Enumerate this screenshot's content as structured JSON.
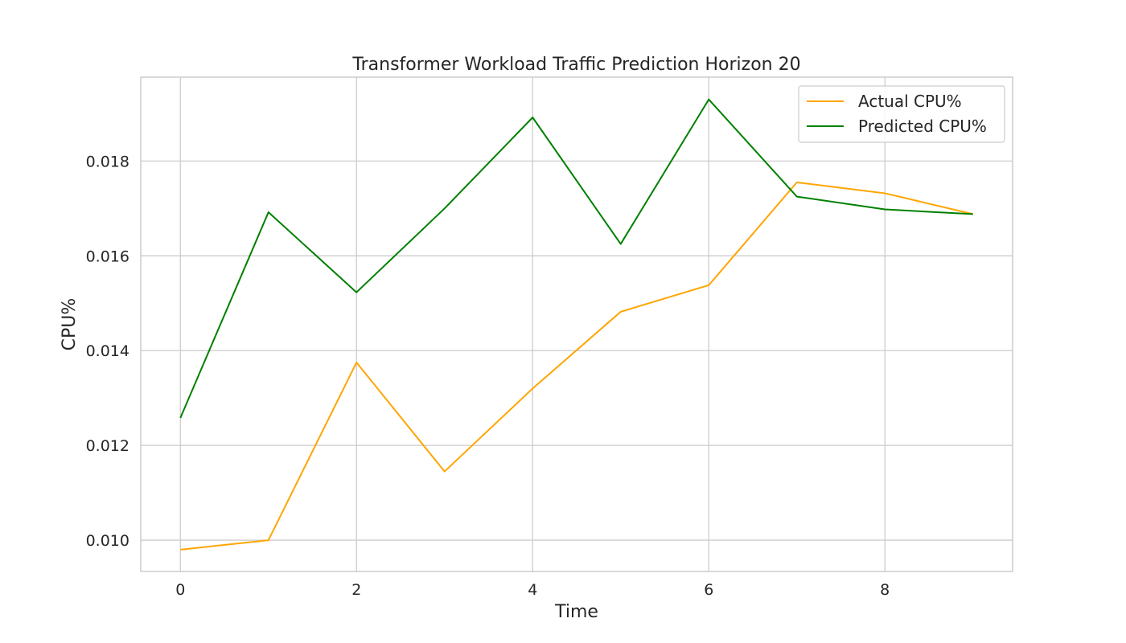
{
  "chart_data": {
    "type": "line",
    "title": "Transformer Workload Traffic Prediction Horizon 20",
    "xlabel": "Time",
    "ylabel": "CPU%",
    "x": [
      0,
      1,
      2,
      3,
      4,
      5,
      6,
      7,
      8,
      9
    ],
    "xlim": [
      -0.45,
      9.45
    ],
    "ylim": [
      0.00934,
      0.01977
    ],
    "xticks": [
      0,
      2,
      4,
      6,
      8
    ],
    "xtick_labels": [
      "0",
      "2",
      "4",
      "6",
      "8"
    ],
    "yticks": [
      0.01,
      0.012,
      0.014,
      0.016,
      0.018
    ],
    "ytick_labels": [
      "0.010",
      "0.012",
      "0.014",
      "0.016",
      "0.018"
    ],
    "grid": true,
    "legend_position": "top-right",
    "series": [
      {
        "name": "Actual CPU%",
        "color": "#FFA500",
        "values": [
          0.0098,
          0.01,
          0.01375,
          0.01145,
          0.0132,
          0.01482,
          0.01538,
          0.01755,
          0.01732,
          0.01688
        ]
      },
      {
        "name": "Predicted CPU%",
        "color": "#008000",
        "values": [
          0.01258,
          0.01692,
          0.01523,
          0.017,
          0.01892,
          0.01625,
          0.0193,
          0.01725,
          0.01698,
          0.01688
        ]
      }
    ]
  }
}
